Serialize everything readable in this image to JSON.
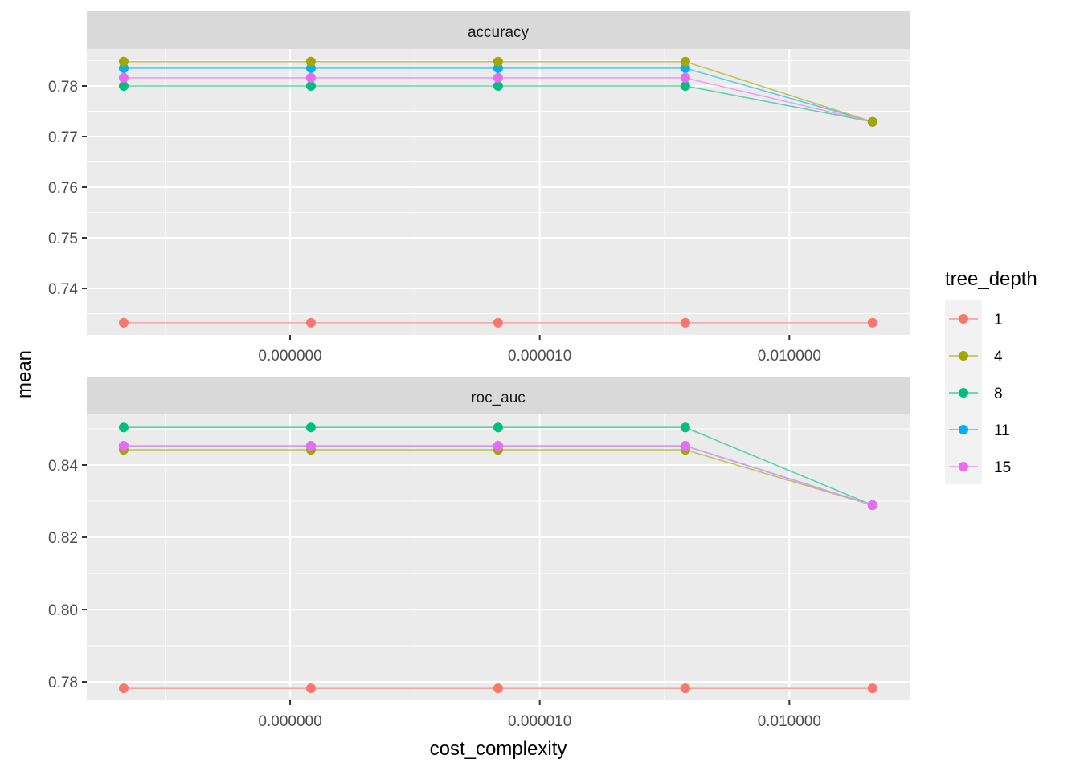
{
  "chart_data": {
    "type": "line",
    "xlabel": "cost_complexity",
    "ylabel": "mean",
    "x_scale": "log10",
    "x": [
      1e-10,
      1.778e-08,
      3.162e-06,
      0.0005623,
      0.1
    ],
    "x_ticks": [
      {
        "value": 1e-08,
        "label": "0.000000"
      },
      {
        "value": 1e-05,
        "label": "0.000010"
      },
      {
        "value": 0.01,
        "label": "0.010000"
      }
    ],
    "xlim": [
      3.6e-11,
      0.279
    ],
    "grid": true,
    "legend": {
      "title": "tree_depth",
      "placement": "right",
      "entries": [
        {
          "name": "1",
          "color": "#F8766D"
        },
        {
          "name": "4",
          "color": "#A3A500"
        },
        {
          "name": "8",
          "color": "#00BF7D"
        },
        {
          "name": "11",
          "color": "#00B0F6"
        },
        {
          "name": "15",
          "color": "#E76BF3"
        }
      ]
    },
    "panels": [
      {
        "title": "accuracy",
        "ylim": [
          0.7308,
          0.7873
        ],
        "y_ticks": [
          {
            "value": 0.74,
            "label": "0.74"
          },
          {
            "value": 0.75,
            "label": "0.75"
          },
          {
            "value": 0.76,
            "label": "0.76"
          },
          {
            "value": 0.77,
            "label": "0.77"
          },
          {
            "value": 0.78,
            "label": "0.78"
          }
        ],
        "y_minor": [
          0.735,
          0.745,
          0.755,
          0.765,
          0.775,
          0.785
        ],
        "series": [
          {
            "name": "1",
            "values": [
              0.7332,
              0.7332,
              0.7332,
              0.7332,
              0.7332
            ]
          },
          {
            "name": "8",
            "values": [
              0.78,
              0.78,
              0.78,
              0.78,
              0.7729
            ]
          },
          {
            "name": "11",
            "values": [
              0.7835,
              0.7835,
              0.7835,
              0.7835,
              0.7729
            ]
          },
          {
            "name": "15",
            "values": [
              0.7816,
              0.7816,
              0.7816,
              0.7816,
              0.7729
            ]
          },
          {
            "name": "4",
            "values": [
              0.7848,
              0.7848,
              0.7848,
              0.7848,
              0.7729
            ]
          }
        ]
      },
      {
        "title": "roc_auc",
        "ylim": [
          0.7749,
          0.854
        ],
        "y_ticks": [
          {
            "value": 0.78,
            "label": "0.78"
          },
          {
            "value": 0.8,
            "label": "0.80"
          },
          {
            "value": 0.82,
            "label": "0.82"
          },
          {
            "value": 0.84,
            "label": "0.84"
          }
        ],
        "y_minor": [
          0.79,
          0.81,
          0.83,
          0.85
        ],
        "series": [
          {
            "name": "1",
            "values": [
              0.7782,
              0.7782,
              0.7782,
              0.7782,
              0.7782
            ]
          },
          {
            "name": "4",
            "values": [
              0.8442,
              0.8442,
              0.8442,
              0.8442,
              0.8289
            ]
          },
          {
            "name": "11",
            "values": [
              0.8453,
              0.8453,
              0.8453,
              0.8453,
              0.8289
            ]
          },
          {
            "name": "8",
            "values": [
              0.8504,
              0.8504,
              0.8504,
              0.8504,
              0.8289
            ]
          },
          {
            "name": "15",
            "values": [
              0.8453,
              0.8453,
              0.8453,
              0.8453,
              0.8289
            ]
          }
        ]
      }
    ]
  }
}
